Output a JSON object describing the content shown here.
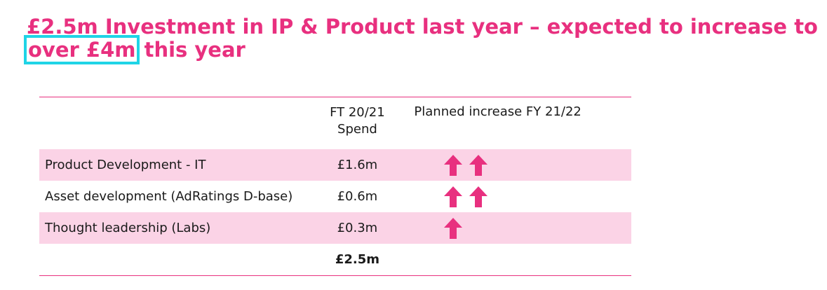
{
  "headline": {
    "part1": "£2.5m Investment in IP & Product last year – expected to increase to",
    "highlight": "over £4m",
    "part2": "this year"
  },
  "table": {
    "header": {
      "col1": "",
      "col2_line1": "FT 20/21",
      "col2_line2": "Spend",
      "col3": "Planned increase FY 21/22"
    },
    "rows": [
      {
        "label": "Product Development - IT",
        "spend": "£1.6m",
        "planned_arrows": 2
      },
      {
        "label": "Asset development (AdRatings D-base)",
        "spend": "£0.6m",
        "planned_arrows": 2
      },
      {
        "label": "Thought leadership (Labs)",
        "spend": "£0.3m",
        "planned_arrows": 1
      }
    ],
    "total": {
      "label": "",
      "spend": "£2.5m"
    }
  },
  "colors": {
    "accent": "#e8307f",
    "row_shade": "#fbd3e6",
    "highlight_box": "#1fd4e6"
  },
  "icons": {
    "arrow": "up-arrow-icon"
  }
}
